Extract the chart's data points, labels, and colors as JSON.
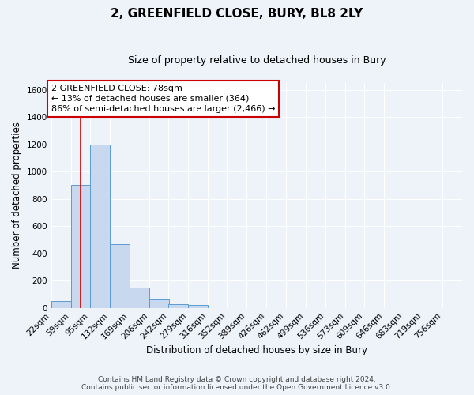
{
  "title": "2, GREENFIELD CLOSE, BURY, BL8 2LY",
  "subtitle": "Size of property relative to detached houses in Bury",
  "xlabel": "Distribution of detached houses by size in Bury",
  "ylabel": "Number of detached properties",
  "bin_labels": [
    "22sqm",
    "59sqm",
    "95sqm",
    "132sqm",
    "169sqm",
    "206sqm",
    "242sqm",
    "279sqm",
    "316sqm",
    "352sqm",
    "389sqm",
    "426sqm",
    "462sqm",
    "499sqm",
    "536sqm",
    "573sqm",
    "609sqm",
    "646sqm",
    "683sqm",
    "719sqm",
    "756sqm"
  ],
  "bar_heights": [
    50,
    900,
    1200,
    470,
    150,
    60,
    30,
    20,
    0,
    0,
    0,
    0,
    0,
    0,
    0,
    0,
    0,
    0,
    0,
    0
  ],
  "bar_color": "#c8d9ef",
  "bar_edge_color": "#5b9bd5",
  "ylim": [
    0,
    1650
  ],
  "yticks": [
    0,
    200,
    400,
    600,
    800,
    1000,
    1200,
    1400,
    1600
  ],
  "vline_x": 78,
  "bin_edges": [
    22,
    59,
    95,
    132,
    169,
    206,
    242,
    279,
    316,
    352,
    389,
    426,
    462,
    499,
    536,
    573,
    609,
    646,
    683,
    719,
    756
  ],
  "bin_width": 37,
  "annotation_title": "2 GREENFIELD CLOSE: 78sqm",
  "annotation_line1": "← 13% of detached houses are smaller (364)",
  "annotation_line2": "86% of semi-detached houses are larger (2,466) →",
  "annotation_box_color": "#ffffff",
  "annotation_edge_color": "#cc0000",
  "vline_color": "#cc0000",
  "footnote1": "Contains HM Land Registry data © Crown copyright and database right 2024.",
  "footnote2": "Contains public sector information licensed under the Open Government Licence v3.0.",
  "background_color": "#eef2f9",
  "grid_color": "#ffffff",
  "title_fontsize": 11,
  "subtitle_fontsize": 9,
  "axis_label_fontsize": 8.5,
  "tick_fontsize": 7.5,
  "annotation_fontsize": 8,
  "footnote_fontsize": 6.5
}
